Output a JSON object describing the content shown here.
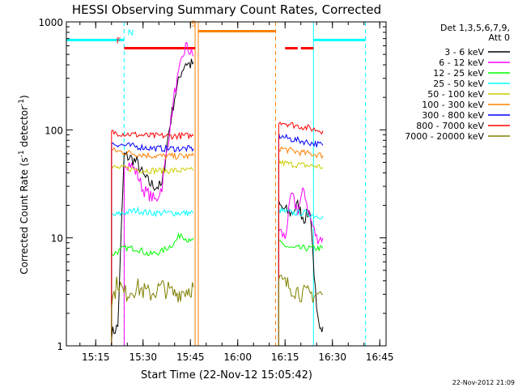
{
  "chart_data": {
    "type": "line",
    "title": "HESSI Observing Summary Count Rates, Corrected",
    "xlabel": "Start Time (22-Nov-12 15:05:42)",
    "ylabel": "Corrected Count Rate (s",
    "ylabel_sup1": "-1",
    "ylabel_mid": " detector",
    "ylabel_sup2": "-1",
    "ylabel_end": ")",
    "y_scale": "log",
    "ylim": [
      1,
      1000
    ],
    "xlim": [
      "15:05:42",
      "16:47:00"
    ],
    "x_ticks": [
      "15:15",
      "15:30",
      "15:45",
      "16:00",
      "16:15",
      "16:30",
      "16:45"
    ],
    "y_ticks": [
      "1",
      "10",
      "100",
      "1000"
    ],
    "legend_title": [
      "Det 1,3,5,6,7,9,",
      "Att 0"
    ],
    "legend_position": "right",
    "footer_date": "22-Nov-2012 21:09",
    "flags": [
      {
        "label": "N",
        "color": "#00ffff",
        "y": 680,
        "spans": [
          [
            "15:05:42",
            "15:24:00"
          ],
          [
            "16:24:00",
            "16:40:30"
          ]
        ]
      },
      {
        "label": "F",
        "color": "#ff0000",
        "y": 570,
        "spans": [
          [
            "15:24:00",
            "15:46:30"
          ],
          [
            "16:15:00",
            "16:19:00"
          ],
          [
            "16:20:00",
            "16:24:00"
          ]
        ]
      },
      {
        "label": "S",
        "color": "#ff8000",
        "y": 820,
        "spans": [
          [
            "15:47:30",
            "16:12:00"
          ]
        ]
      }
    ],
    "vlines": [
      {
        "x": "15:05:42",
        "color": "#00ffff",
        "style": "solid"
      },
      {
        "x": "15:24:00",
        "color": "#00ffff",
        "style": "dashed"
      },
      {
        "x": "15:46:30",
        "color": "#ff8000",
        "style": "solid"
      },
      {
        "x": "15:47:30",
        "color": "#ff8000",
        "style": "solid"
      },
      {
        "x": "16:12:00",
        "color": "#ff8000",
        "style": "dashed"
      },
      {
        "x": "16:24:00",
        "color": "#00ffff",
        "style": "solid"
      },
      {
        "x": "16:40:30",
        "color": "#00ffff",
        "style": "dashed"
      }
    ],
    "series": [
      {
        "name": "3 - 6 keV",
        "color": "#000000",
        "segments": [
          {
            "x": [
              "15:20:00",
              "15:22:00",
              "15:24:00",
              "15:26:00",
              "15:28:00",
              "15:30:00",
              "15:32:00",
              "15:34:00",
              "15:36:00",
              "15:38:00",
              "15:40:00",
              "15:42:00",
              "15:43:30",
              "15:45:00",
              "15:46:00"
            ],
            "y": [
              1.3,
              1.5,
              58,
              55,
              50,
              38,
              32,
              30,
              30,
              90,
              200,
              340,
              420,
              400,
              420
            ]
          },
          {
            "x": [
              "16:13:00",
              "16:15:00",
              "16:17:00",
              "16:19:00",
              "16:21:00",
              "16:23:00",
              "16:25:00",
              "16:26:00",
              "16:27:00"
            ],
            "y": [
              20,
              18,
              17,
              20,
              15,
              18,
              2,
              1.3,
              1.5
            ]
          }
        ]
      },
      {
        "name": "6 - 12 keV",
        "color": "#ff00ff",
        "segments": [
          {
            "x": [
              "15:24:00",
              "15:26:00",
              "15:28:00",
              "15:30:00",
              "15:32:00",
              "15:34:00",
              "15:36:00",
              "15:38:00",
              "15:40:00",
              "15:42:00",
              "15:43:30",
              "15:45:00",
              "15:46:00"
            ],
            "y": [
              50,
              48,
              40,
              28,
              25,
              22,
              30,
              80,
              220,
              400,
              600,
              520,
              480
            ]
          },
          {
            "x": [
              "16:13:00",
              "16:15:00",
              "16:17:00",
              "16:19:00",
              "16:21:00",
              "16:23:00",
              "16:25:00",
              "16:27:00"
            ],
            "y": [
              12,
              10,
              25,
              18,
              28,
              15,
              10,
              10
            ]
          }
        ]
      },
      {
        "name": "12 - 25 keV",
        "color": "#00ff00",
        "segments": [
          {
            "x": [
              "15:20:00",
              "15:24:00",
              "15:28:00",
              "15:32:00",
              "15:36:00",
              "15:40:00",
              "15:42:00",
              "15:45:00",
              "15:46:00"
            ],
            "y": [
              7,
              8,
              8,
              7,
              7.5,
              9,
              11,
              9,
              10
            ]
          },
          {
            "x": [
              "16:13:00",
              "16:17:00",
              "16:21:00",
              "16:25:00",
              "16:27:00"
            ],
            "y": [
              9,
              8,
              8,
              8,
              8
            ]
          }
        ]
      },
      {
        "name": "25 - 50 keV",
        "color": "#00ffff",
        "segments": [
          {
            "x": [
              "15:20:00",
              "15:24:00",
              "15:28:00",
              "15:32:00",
              "15:36:00",
              "15:40:00",
              "15:46:00"
            ],
            "y": [
              16,
              17,
              18,
              17,
              17,
              17,
              17
            ]
          },
          {
            "x": [
              "16:13:00",
              "16:17:00",
              "16:21:00",
              "16:25:00",
              "16:27:00"
            ],
            "y": [
              18,
              17,
              17,
              16,
              16
            ]
          }
        ]
      },
      {
        "name": "50 - 100 keV",
        "color": "#cccc00",
        "segments": [
          {
            "x": [
              "15:20:00",
              "15:24:00",
              "15:28:00",
              "15:32:00",
              "15:36:00",
              "15:40:00",
              "15:46:00"
            ],
            "y": [
              45,
              44,
              43,
              42,
              42,
              42,
              42
            ]
          },
          {
            "x": [
              "16:13:00",
              "16:17:00",
              "16:21:00",
              "16:25:00",
              "16:27:00"
            ],
            "y": [
              50,
              48,
              47,
              46,
              45
            ]
          }
        ]
      },
      {
        "name": "100 - 300 keV",
        "color": "#ff8000",
        "segments": [
          {
            "x": [
              "15:20:00",
              "15:24:00",
              "15:28:00",
              "15:32:00",
              "15:36:00",
              "15:40:00",
              "15:46:00"
            ],
            "y": [
              65,
              62,
              60,
              58,
              57,
              57,
              57
            ]
          },
          {
            "x": [
              "16:13:00",
              "16:17:00",
              "16:21:00",
              "16:25:00",
              "16:27:00"
            ],
            "y": [
              68,
              64,
              61,
              59,
              58
            ]
          }
        ]
      },
      {
        "name": "300 - 800 keV",
        "color": "#0000ff",
        "segments": [
          {
            "x": [
              "15:20:00",
              "15:24:00",
              "15:28:00",
              "15:32:00",
              "15:36:00",
              "15:40:00",
              "15:46:00"
            ],
            "y": [
              75,
              72,
              70,
              68,
              67,
              67,
              67
            ]
          },
          {
            "x": [
              "16:13:00",
              "16:17:00",
              "16:21:00",
              "16:25:00",
              "16:27:00"
            ],
            "y": [
              88,
              82,
              78,
              74,
              72
            ]
          }
        ]
      },
      {
        "name": "800 - 7000 keV",
        "color": "#ff0000",
        "segments": [
          {
            "x": [
              "15:20:00",
              "15:24:00",
              "15:28:00",
              "15:32:00",
              "15:36:00",
              "15:40:00",
              "15:46:00"
            ],
            "y": [
              95,
              92,
              90,
              88,
              88,
              88,
              88
            ]
          },
          {
            "x": [
              "16:13:00",
              "16:17:00",
              "16:21:00",
              "16:25:00",
              "16:27:00"
            ],
            "y": [
              120,
              112,
              106,
              100,
              98
            ]
          }
        ]
      },
      {
        "name": "7000 - 20000 keV",
        "color": "#808000",
        "segments": [
          {
            "x": [
              "15:20:00",
              "15:22:00",
              "15:24:00",
              "15:28:00",
              "15:32:00",
              "15:36:00",
              "15:40:00",
              "15:46:00"
            ],
            "y": [
              2.5,
              4,
              3,
              3.5,
              3,
              3.5,
              3,
              3.5
            ]
          },
          {
            "x": [
              "16:13:00",
              "16:17:00",
              "16:21:00",
              "16:25:00",
              "16:27:00"
            ],
            "y": [
              4,
              3.5,
              3,
              3,
              3
            ]
          }
        ]
      }
    ]
  }
}
